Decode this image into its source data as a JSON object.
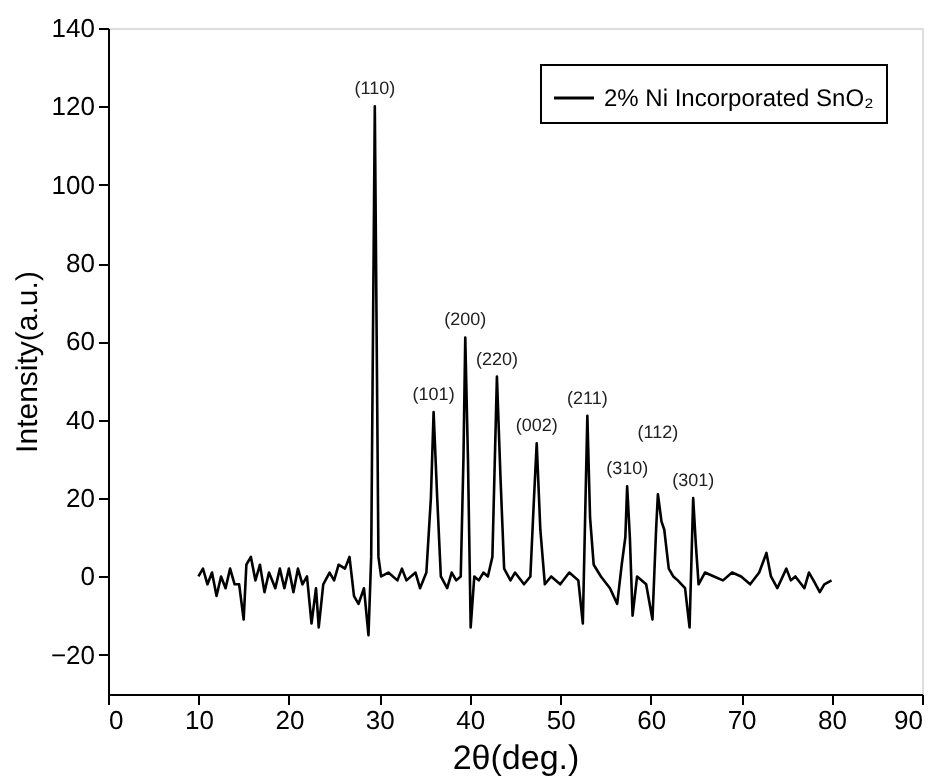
{
  "chart_data": {
    "type": "line",
    "xlabel": "2θ(deg.)",
    "ylabel": "Intensity(a.u.)",
    "xlim": [
      0,
      90
    ],
    "xticks": [
      0,
      10,
      20,
      30,
      40,
      50,
      60,
      70,
      80,
      90
    ],
    "ylim": [
      -30,
      140
    ],
    "yticks": [
      -20,
      0,
      20,
      40,
      60,
      80,
      100,
      120,
      140
    ],
    "grid": false,
    "legend": "top right",
    "marker": "none",
    "line_style": "solid",
    "series": [
      {
        "name": "2% Ni Incorporated SnO₂",
        "color": "#000000",
        "x": [
          10,
          10.5,
          11,
          11.5,
          12,
          12.5,
          13,
          13.5,
          14,
          14.5,
          15,
          15.3,
          15.8,
          16.3,
          16.8,
          17.3,
          17.8,
          18.5,
          19,
          19.5,
          20,
          20.5,
          21,
          21.5,
          22,
          22.5,
          23,
          23.3,
          23.8,
          24.5,
          25,
          25.5,
          26.2,
          26.7,
          27.2,
          27.7,
          28.3,
          28.8,
          29.1,
          29.5,
          29.9,
          30.2,
          31,
          32,
          32.5,
          33,
          34,
          34.5,
          35.2,
          35.7,
          36,
          36.4,
          36.8,
          37.5,
          38,
          38.5,
          39,
          39.3,
          39.5,
          39.8,
          40.1,
          40.5,
          41,
          41.5,
          42,
          42.5,
          43,
          43.4,
          43.8,
          44.5,
          45,
          46,
          46.7,
          47.1,
          47.4,
          47.8,
          48.3,
          49,
          50,
          51,
          52,
          52.5,
          52.8,
          53,
          53.3,
          53.7,
          54.5,
          55.5,
          56.3,
          56.8,
          57.2,
          57.4,
          57.7,
          58,
          58.5,
          59.5,
          60.2,
          60.6,
          60.8,
          61.2,
          61.5,
          62,
          62.5,
          63,
          63.8,
          64.3,
          64.7,
          65,
          65.3,
          66,
          67,
          68,
          69,
          70,
          71,
          72,
          72.8,
          73.3,
          74,
          75,
          75.5,
          76,
          77,
          77.5,
          78,
          78.7,
          79.2,
          80
        ],
        "values": [
          0,
          2,
          -2,
          1,
          -5,
          0,
          -3,
          2,
          -2,
          -2,
          -11,
          3,
          5,
          -1,
          3,
          -4,
          1,
          -3,
          2,
          -3,
          2,
          -4,
          2,
          -2,
          0,
          -12,
          -3,
          -13,
          -2,
          1,
          -1,
          3,
          2,
          5,
          -5,
          -7,
          -3,
          -15,
          5,
          120,
          5,
          0,
          1,
          -1,
          2,
          -1,
          1,
          -3,
          1,
          20,
          42,
          20,
          0,
          -3,
          1,
          -1,
          0,
          30,
          61,
          30,
          -13,
          0,
          -1,
          1,
          0,
          5,
          51,
          25,
          2,
          -1,
          1,
          -2,
          0,
          20,
          34,
          12,
          -2,
          0,
          -2,
          1,
          -1,
          -12,
          20,
          41,
          15,
          3,
          0,
          -3,
          -7,
          3,
          10,
          23,
          10,
          -10,
          0,
          -2,
          -11,
          12,
          21,
          14,
          12,
          2,
          0,
          -1,
          -3,
          -13,
          20,
          8,
          -2,
          1,
          0,
          -1,
          1,
          0,
          -2,
          1,
          6,
          0,
          -3,
          2,
          -1,
          0,
          -3,
          1,
          -1,
          -4,
          -2,
          -1
        ]
      }
    ],
    "annotations": [
      {
        "text": "(110)",
        "x": 29.5,
        "y": 120
      },
      {
        "text": "(101)",
        "x": 36,
        "y": 42
      },
      {
        "text": "(200)",
        "x": 39.5,
        "y": 61
      },
      {
        "text": "(220)",
        "x": 43,
        "y": 51
      },
      {
        "text": "(002)",
        "x": 47.4,
        "y": 34
      },
      {
        "text": "(211)",
        "x": 53,
        "y": 41
      },
      {
        "text": "(310)",
        "x": 57.4,
        "y": 23
      },
      {
        "text": "(112)",
        "x": 60.8,
        "y": 21
      },
      {
        "text": "(301)",
        "x": 64.7,
        "y": 20
      }
    ]
  }
}
